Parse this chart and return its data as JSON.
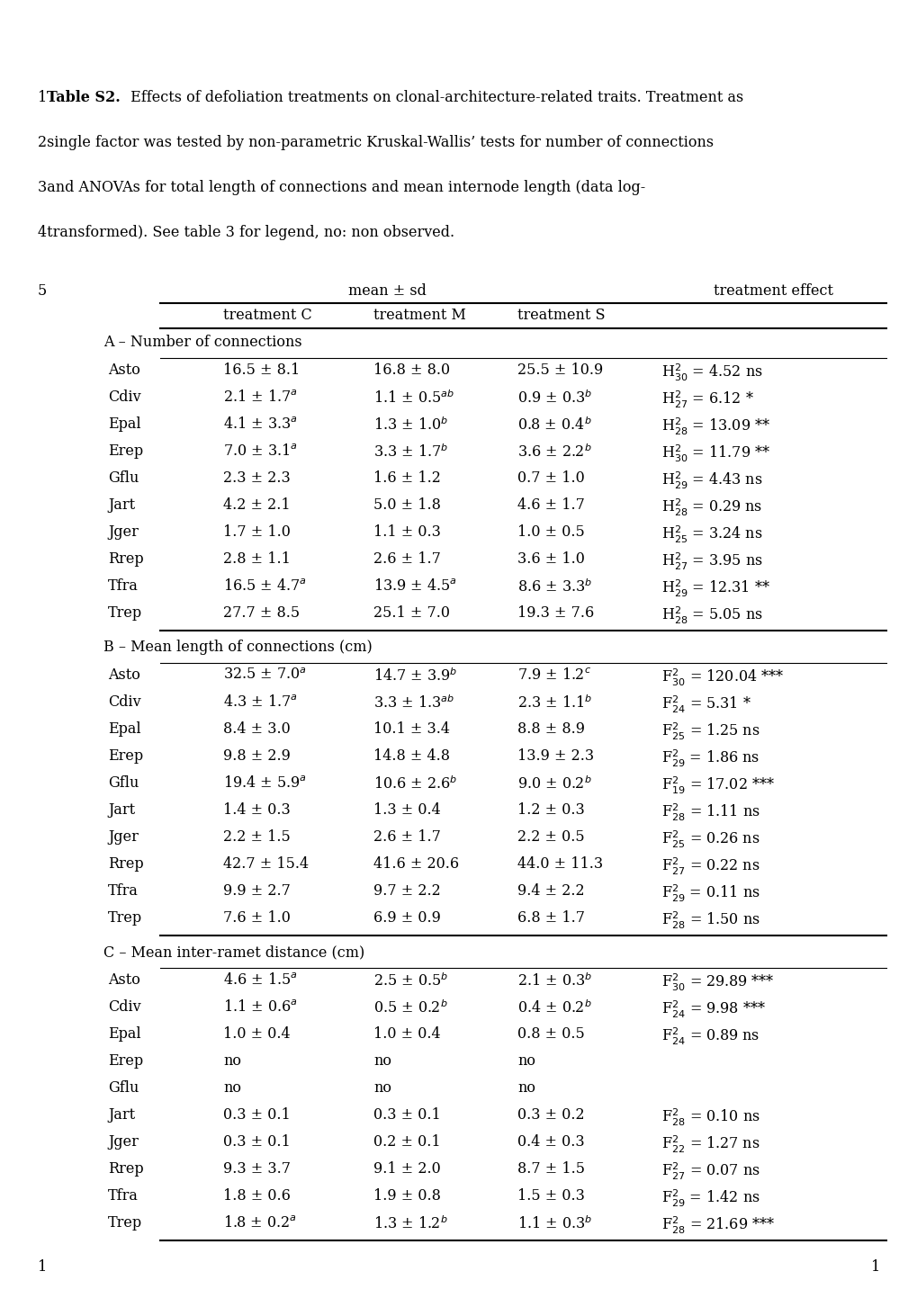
{
  "caption_lines": [
    [
      {
        "text": "1",
        "bold": false
      },
      {
        "text": "Table S2.",
        "bold": true
      },
      {
        "text": " Effects of defoliation treatments on clonal-architecture-related traits. Treatment as",
        "bold": false
      }
    ],
    [
      {
        "text": "2single factor was tested by non-parametric Kruskal-Wallis’ tests for number of connections",
        "bold": false
      }
    ],
    [
      {
        "text": "3and ANOVAs for total length of connections and mean internode length (data log-",
        "bold": false
      }
    ],
    [
      {
        "text": "4transformed). See table 3 for legend, no: non observed.",
        "bold": false
      }
    ]
  ],
  "sections": [
    {
      "section_label": "A – Number of connections",
      "rows": [
        [
          "Asto",
          "16.5 ± 8.1",
          "16.8 ± 8.0",
          "25.5 ± 10.9",
          "H$^2_{30}$ = 4.52 ns"
        ],
        [
          "Cdiv",
          "2.1 ± 1.7$^a$",
          "1.1 ± 0.5$^{ab}$",
          "0.9 ± 0.3$^b$",
          "H$^2_{27}$ = 6.12 *"
        ],
        [
          "Epal",
          "4.1 ± 3.3$^a$",
          "1.3 ± 1.0$^b$",
          "0.8 ± 0.4$^b$",
          "H$^2_{28}$ = 13.09 **"
        ],
        [
          "Erep",
          "7.0 ± 3.1$^a$",
          "3.3 ± 1.7$^b$",
          "3.6 ± 2.2$^b$",
          "H$^2_{30}$ = 11.79 **"
        ],
        [
          "Gflu",
          "2.3 ± 2.3",
          "1.6 ± 1.2",
          "0.7 ± 1.0",
          "H$^2_{29}$ = 4.43 ns"
        ],
        [
          "Jart",
          "4.2 ± 2.1",
          "5.0 ± 1.8",
          "4.6 ± 1.7",
          "H$^2_{28}$ = 0.29 ns"
        ],
        [
          "Jger",
          "1.7 ± 1.0",
          "1.1 ± 0.3",
          "1.0 ± 0.5",
          "H$^2_{25}$ = 3.24 ns"
        ],
        [
          "Rrep",
          "2.8 ± 1.1",
          "2.6 ± 1.7",
          "3.6 ± 1.0",
          "H$^2_{27}$ = 3.95 ns"
        ],
        [
          "Tfra",
          "16.5 ± 4.7$^a$",
          "13.9 ± 4.5$^a$",
          "8.6 ± 3.3$^b$",
          "H$^2_{29}$ = 12.31 **"
        ],
        [
          "Trep",
          "27.7 ± 8.5",
          "25.1 ± 7.0",
          "19.3 ± 7.6",
          "H$^2_{28}$ = 5.05 ns"
        ]
      ]
    },
    {
      "section_label": "B – Mean length of connections (cm)",
      "rows": [
        [
          "Asto",
          "32.5 ± 7.0$^a$",
          "14.7 ± 3.9$^b$",
          "7.9 ± 1.2$^c$",
          "F$^2_{30}$ = 120.04 ***"
        ],
        [
          "Cdiv",
          "4.3 ± 1.7$^a$",
          "3.3 ± 1.3$^{ab}$",
          "2.3 ± 1.1$^b$",
          "F$^2_{24}$ = 5.31 *"
        ],
        [
          "Epal",
          "8.4 ± 3.0",
          "10.1 ± 3.4",
          "8.8 ± 8.9",
          "F$^2_{25}$ = 1.25 ns"
        ],
        [
          "Erep",
          "9.8 ± 2.9",
          "14.8 ± 4.8",
          "13.9 ± 2.3",
          "F$^2_{29}$ = 1.86 ns"
        ],
        [
          "Gflu",
          "19.4 ± 5.9$^a$",
          "10.6 ± 2.6$^b$",
          "9.0 ± 0.2$^b$",
          "F$^2_{19}$ = 17.02 ***"
        ],
        [
          "Jart",
          "1.4 ± 0.3",
          "1.3 ± 0.4",
          "1.2 ± 0.3",
          "F$^2_{28}$ = 1.11 ns"
        ],
        [
          "Jger",
          "2.2 ± 1.5",
          "2.6 ± 1.7",
          "2.2 ± 0.5",
          "F$^2_{25}$ = 0.26 ns"
        ],
        [
          "Rrep",
          "42.7 ± 15.4",
          "41.6 ± 20.6",
          "44.0 ± 11.3",
          "F$^2_{27}$ = 0.22 ns"
        ],
        [
          "Tfra",
          "9.9 ± 2.7",
          "9.7 ± 2.2",
          "9.4 ± 2.2",
          "F$^2_{29}$ = 0.11 ns"
        ],
        [
          "Trep",
          "7.6 ± 1.0",
          "6.9 ± 0.9",
          "6.8 ± 1.7",
          "F$^2_{28}$ = 1.50 ns"
        ]
      ]
    },
    {
      "section_label": "C – Mean inter-ramet distance (cm)",
      "rows": [
        [
          "Asto",
          "4.6 ± 1.5$^a$",
          "2.5 ± 0.5$^b$",
          "2.1 ± 0.3$^b$",
          "F$^2_{30}$ = 29.89 ***"
        ],
        [
          "Cdiv",
          "1.1 ± 0.6$^a$",
          "0.5 ± 0.2$^b$",
          "0.4 ± 0.2$^b$",
          "F$^2_{24}$ = 9.98 ***"
        ],
        [
          "Epal",
          "1.0 ± 0.4",
          "1.0 ± 0.4",
          "0.8 ± 0.5",
          "F$^2_{24}$ = 0.89 ns"
        ],
        [
          "Erep",
          "no",
          "no",
          "no",
          ""
        ],
        [
          "Gflu",
          "no",
          "no",
          "no",
          ""
        ],
        [
          "Jart",
          "0.3 ± 0.1",
          "0.3 ± 0.1",
          "0.3 ± 0.2",
          "F$^2_{28}$ = 0.10 ns"
        ],
        [
          "Jger",
          "0.3 ± 0.1",
          "0.2 ± 0.1",
          "0.4 ± 0.3",
          "F$^2_{22}$ = 1.27 ns"
        ],
        [
          "Rrep",
          "9.3 ± 3.7",
          "9.1 ± 2.0",
          "8.7 ± 1.5",
          "F$^2_{27}$ = 0.07 ns"
        ],
        [
          "Tfra",
          "1.8 ± 0.6",
          "1.9 ± 0.8",
          "1.5 ± 0.3",
          "F$^2_{29}$ = 1.42 ns"
        ],
        [
          "Trep",
          "1.8 ± 0.2$^a$",
          "1.3 ± 1.2$^b$",
          "1.1 ± 0.3$^b$",
          "F$^2_{28}$ = 21.69 ***"
        ]
      ]
    }
  ],
  "font_size": 11.5,
  "font_family": "DejaVu Serif"
}
